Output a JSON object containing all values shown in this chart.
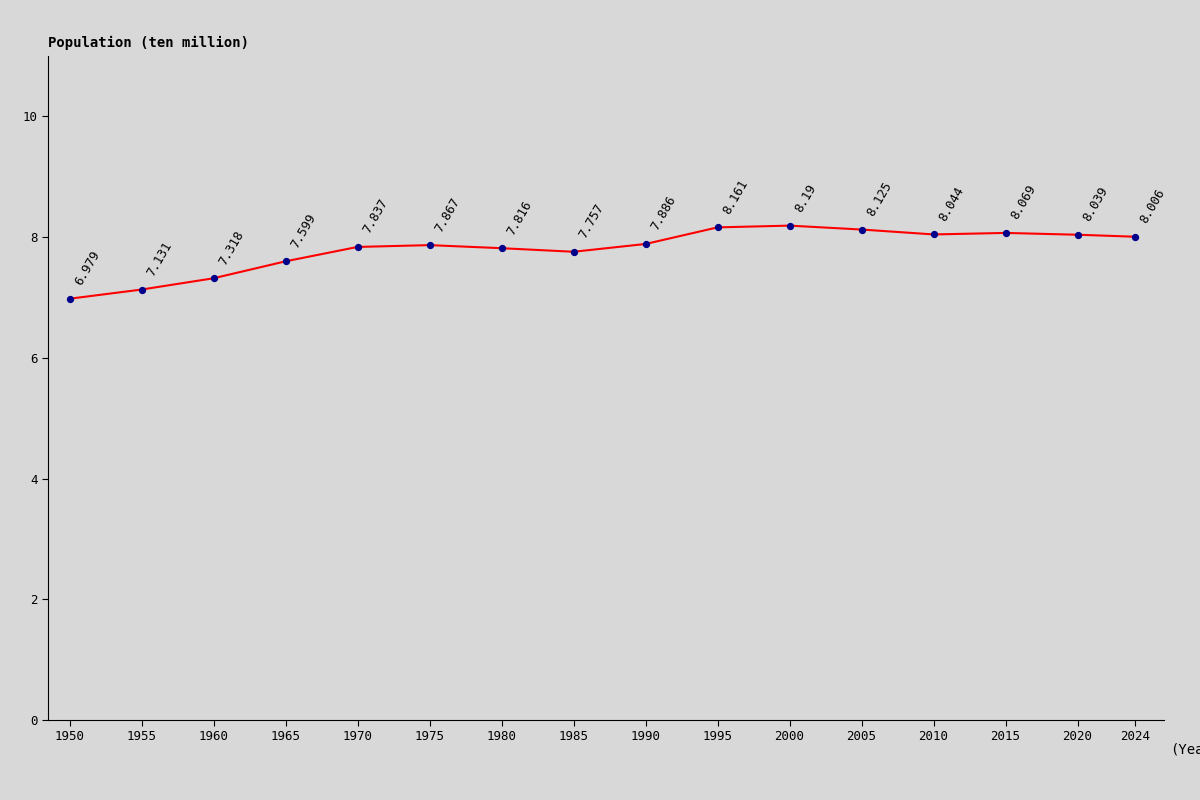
{
  "years": [
    1950,
    1955,
    1960,
    1965,
    1970,
    1975,
    1980,
    1985,
    1990,
    1995,
    2000,
    2005,
    2010,
    2015,
    2020,
    2024
  ],
  "population": [
    6.979,
    7.131,
    7.318,
    7.599,
    7.837,
    7.867,
    7.816,
    7.757,
    7.886,
    8.161,
    8.19,
    8.125,
    8.044,
    8.069,
    8.039,
    8.006
  ],
  "xlabel": "(Year)",
  "ylabel": "Population (ten million)",
  "background_color": "#d8d8d8",
  "line_color": "#ff0000",
  "dot_color": "#00008b",
  "xlim": [
    1948.5,
    2026
  ],
  "ylim": [
    0,
    11
  ],
  "yticks": [
    0,
    2,
    4,
    6,
    8,
    10
  ],
  "xticks": [
    1950,
    1955,
    1960,
    1965,
    1970,
    1975,
    1980,
    1985,
    1990,
    1995,
    2000,
    2005,
    2010,
    2015,
    2020,
    2024
  ],
  "annotation_rotation": 60,
  "annotation_fontsize": 9,
  "tick_fontsize": 9,
  "ylabel_fontsize": 10,
  "xlabel_fontsize": 10
}
